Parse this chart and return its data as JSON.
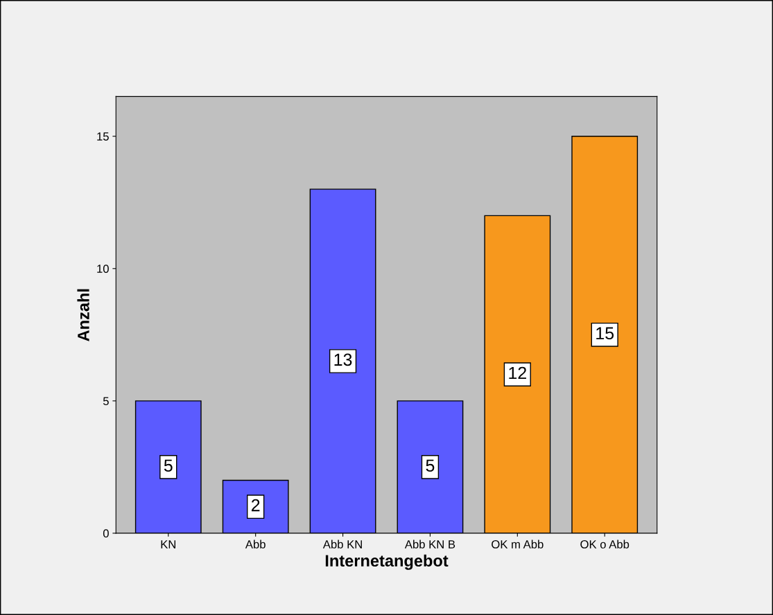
{
  "chart_data": {
    "type": "bar",
    "xlabel": "Internetangebot",
    "ylabel": "Anzahl",
    "categories": [
      "KN",
      "Abb",
      "Abb KN",
      "Abb KN B",
      "OK m Abb",
      "OK o Abb"
    ],
    "values": [
      5,
      2,
      13,
      5,
      12,
      15
    ],
    "colors": [
      "#5b5bff",
      "#5b5bff",
      "#5b5bff",
      "#5b5bff",
      "#f7981d",
      "#f7981d"
    ],
    "ylim": [
      0,
      16.5
    ],
    "yticks": [
      0,
      5,
      10,
      15
    ],
    "grid": false,
    "data_labels": true
  }
}
